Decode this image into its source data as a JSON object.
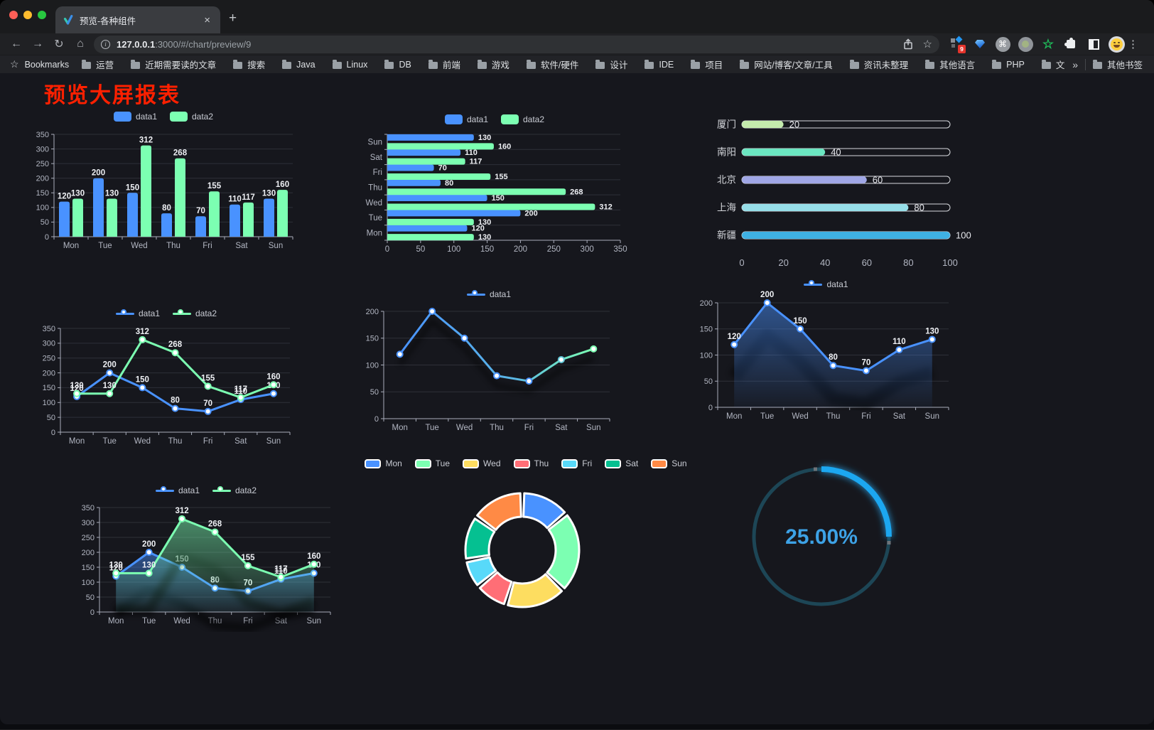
{
  "browser": {
    "tab_title": "预览-各种组件",
    "url_host": "127.0.0.1",
    "url_rest": ":3000/#/chart/preview/9",
    "bookmarks_label": "Bookmarks",
    "folders": [
      "运营",
      "近期需要读的文章",
      "搜索",
      "Java",
      "Linux",
      "DB",
      "前端",
      "游戏",
      "软件/硬件",
      "设计",
      "IDE",
      "项目",
      "网站/博客/文章/工具",
      "资讯未整理",
      "其他语言",
      "PHP",
      "文件服务器"
    ],
    "overflow": "»",
    "other_bookmarks": "其他书签",
    "extension_badge": "9"
  },
  "icons": {
    "close": "×",
    "plus": "+",
    "back": "←",
    "forward": "→",
    "reload": "↻",
    "home": "⌂",
    "star": "☆",
    "info": "i",
    "kebab": "⋮",
    "command": "⌘",
    "green_star": "☆"
  },
  "page": {
    "title": "预览大屏报表",
    "title_color": "#ff2000",
    "background": "#16171d"
  },
  "chart_data": [
    {
      "id": "grouped-bar",
      "type": "bar",
      "categories": [
        "Mon",
        "Tue",
        "Wed",
        "Thu",
        "Fri",
        "Sat",
        "Sun"
      ],
      "series": [
        {
          "name": "data1",
          "color": "#4992ff",
          "values": [
            120,
            200,
            150,
            80,
            70,
            110,
            130
          ]
        },
        {
          "name": "data2",
          "color": "#7cffb2",
          "values": [
            130,
            130,
            312,
            268,
            155,
            117,
            160
          ]
        }
      ],
      "ylim": [
        0,
        350
      ],
      "ystep": 50,
      "grid": true,
      "legend_position": "top",
      "labels": true
    },
    {
      "id": "horizontal-bar",
      "type": "bar",
      "horizontal": true,
      "categories": [
        "Mon",
        "Tue",
        "Wed",
        "Thu",
        "Fri",
        "Sat",
        "Sun"
      ],
      "series": [
        {
          "name": "data1",
          "color": "#4992ff",
          "values": [
            120,
            200,
            150,
            80,
            70,
            110,
            130
          ]
        },
        {
          "name": "data2",
          "color": "#7cffb2",
          "values": [
            130,
            130,
            312,
            268,
            155,
            117,
            160
          ]
        }
      ],
      "xlim": [
        0,
        350
      ],
      "xstep": 50,
      "grid": true,
      "legend_position": "top",
      "labels": true
    },
    {
      "id": "progress-bars",
      "type": "bar",
      "horizontal": true,
      "categories": [
        "厦门",
        "南阳",
        "北京",
        "上海",
        "新疆"
      ],
      "values": [
        20,
        40,
        60,
        80,
        100
      ],
      "colors": [
        "#c4ebad",
        "#6be6c1",
        "#a0a7e6",
        "#96dee8",
        "#3fb1e3"
      ],
      "xlim": [
        0,
        100
      ],
      "xticks": [
        0,
        20,
        40,
        60,
        80,
        100
      ],
      "labels": true
    },
    {
      "id": "line-two",
      "type": "line",
      "categories": [
        "Mon",
        "Tue",
        "Wed",
        "Thu",
        "Fri",
        "Sat",
        "Sun"
      ],
      "series": [
        {
          "name": "data1",
          "color": "#4992ff",
          "values": [
            120,
            200,
            150,
            80,
            70,
            110,
            130
          ]
        },
        {
          "name": "data2",
          "color": "#7cffb2",
          "values": [
            130,
            130,
            312,
            268,
            155,
            117,
            160
          ]
        }
      ],
      "ylim": [
        0,
        350
      ],
      "ystep": 50,
      "grid": true,
      "legend_position": "top",
      "labels": true
    },
    {
      "id": "line-gradient",
      "type": "line",
      "categories": [
        "Mon",
        "Tue",
        "Wed",
        "Thu",
        "Fri",
        "Sat",
        "Sun"
      ],
      "series": [
        {
          "name": "data1",
          "color": "#4992ff",
          "gradient": [
            "#4992ff",
            "#7cffb2"
          ],
          "values": [
            120,
            200,
            150,
            80,
            70,
            110,
            130
          ]
        }
      ],
      "ylim": [
        0,
        200
      ],
      "ystep": 50,
      "grid": true,
      "legend_position": "top",
      "labels": false
    },
    {
      "id": "area-single",
      "type": "area",
      "categories": [
        "Mon",
        "Tue",
        "Wed",
        "Thu",
        "Fri",
        "Sat",
        "Sun"
      ],
      "series": [
        {
          "name": "data1",
          "color": "#4992ff",
          "values": [
            120,
            200,
            150,
            80,
            70,
            110,
            130
          ]
        }
      ],
      "ylim": [
        0,
        200
      ],
      "ystep": 50,
      "grid": true,
      "legend_position": "top",
      "labels": true
    },
    {
      "id": "area-two",
      "type": "area",
      "categories": [
        "Mon",
        "Tue",
        "Wed",
        "Thu",
        "Fri",
        "Sat",
        "Sun"
      ],
      "series": [
        {
          "name": "data1",
          "color": "#4992ff",
          "values": [
            120,
            200,
            150,
            80,
            70,
            110,
            130
          ]
        },
        {
          "name": "data2",
          "color": "#7cffb2",
          "values": [
            130,
            130,
            312,
            268,
            155,
            117,
            160
          ]
        }
      ],
      "ylim": [
        0,
        350
      ],
      "ystep": 50,
      "grid": true,
      "legend_position": "top",
      "labels": true
    },
    {
      "id": "donut",
      "type": "pie",
      "categories": [
        "Mon",
        "Tue",
        "Wed",
        "Thu",
        "Fri",
        "Sat",
        "Sun"
      ],
      "values": [
        120,
        200,
        150,
        80,
        70,
        110,
        130
      ],
      "colors": [
        "#4992ff",
        "#7cffb2",
        "#fddd60",
        "#ff6e76",
        "#58d9f9",
        "#05c091",
        "#ff8a45"
      ],
      "inner_radius_ratio": 0.59,
      "legend_position": "top"
    },
    {
      "id": "gauge",
      "type": "gauge",
      "value": 25,
      "label": "25.00%",
      "color": "#1aa7f0",
      "track_color": "#1d4656",
      "text_color": "#3da2e6"
    }
  ]
}
